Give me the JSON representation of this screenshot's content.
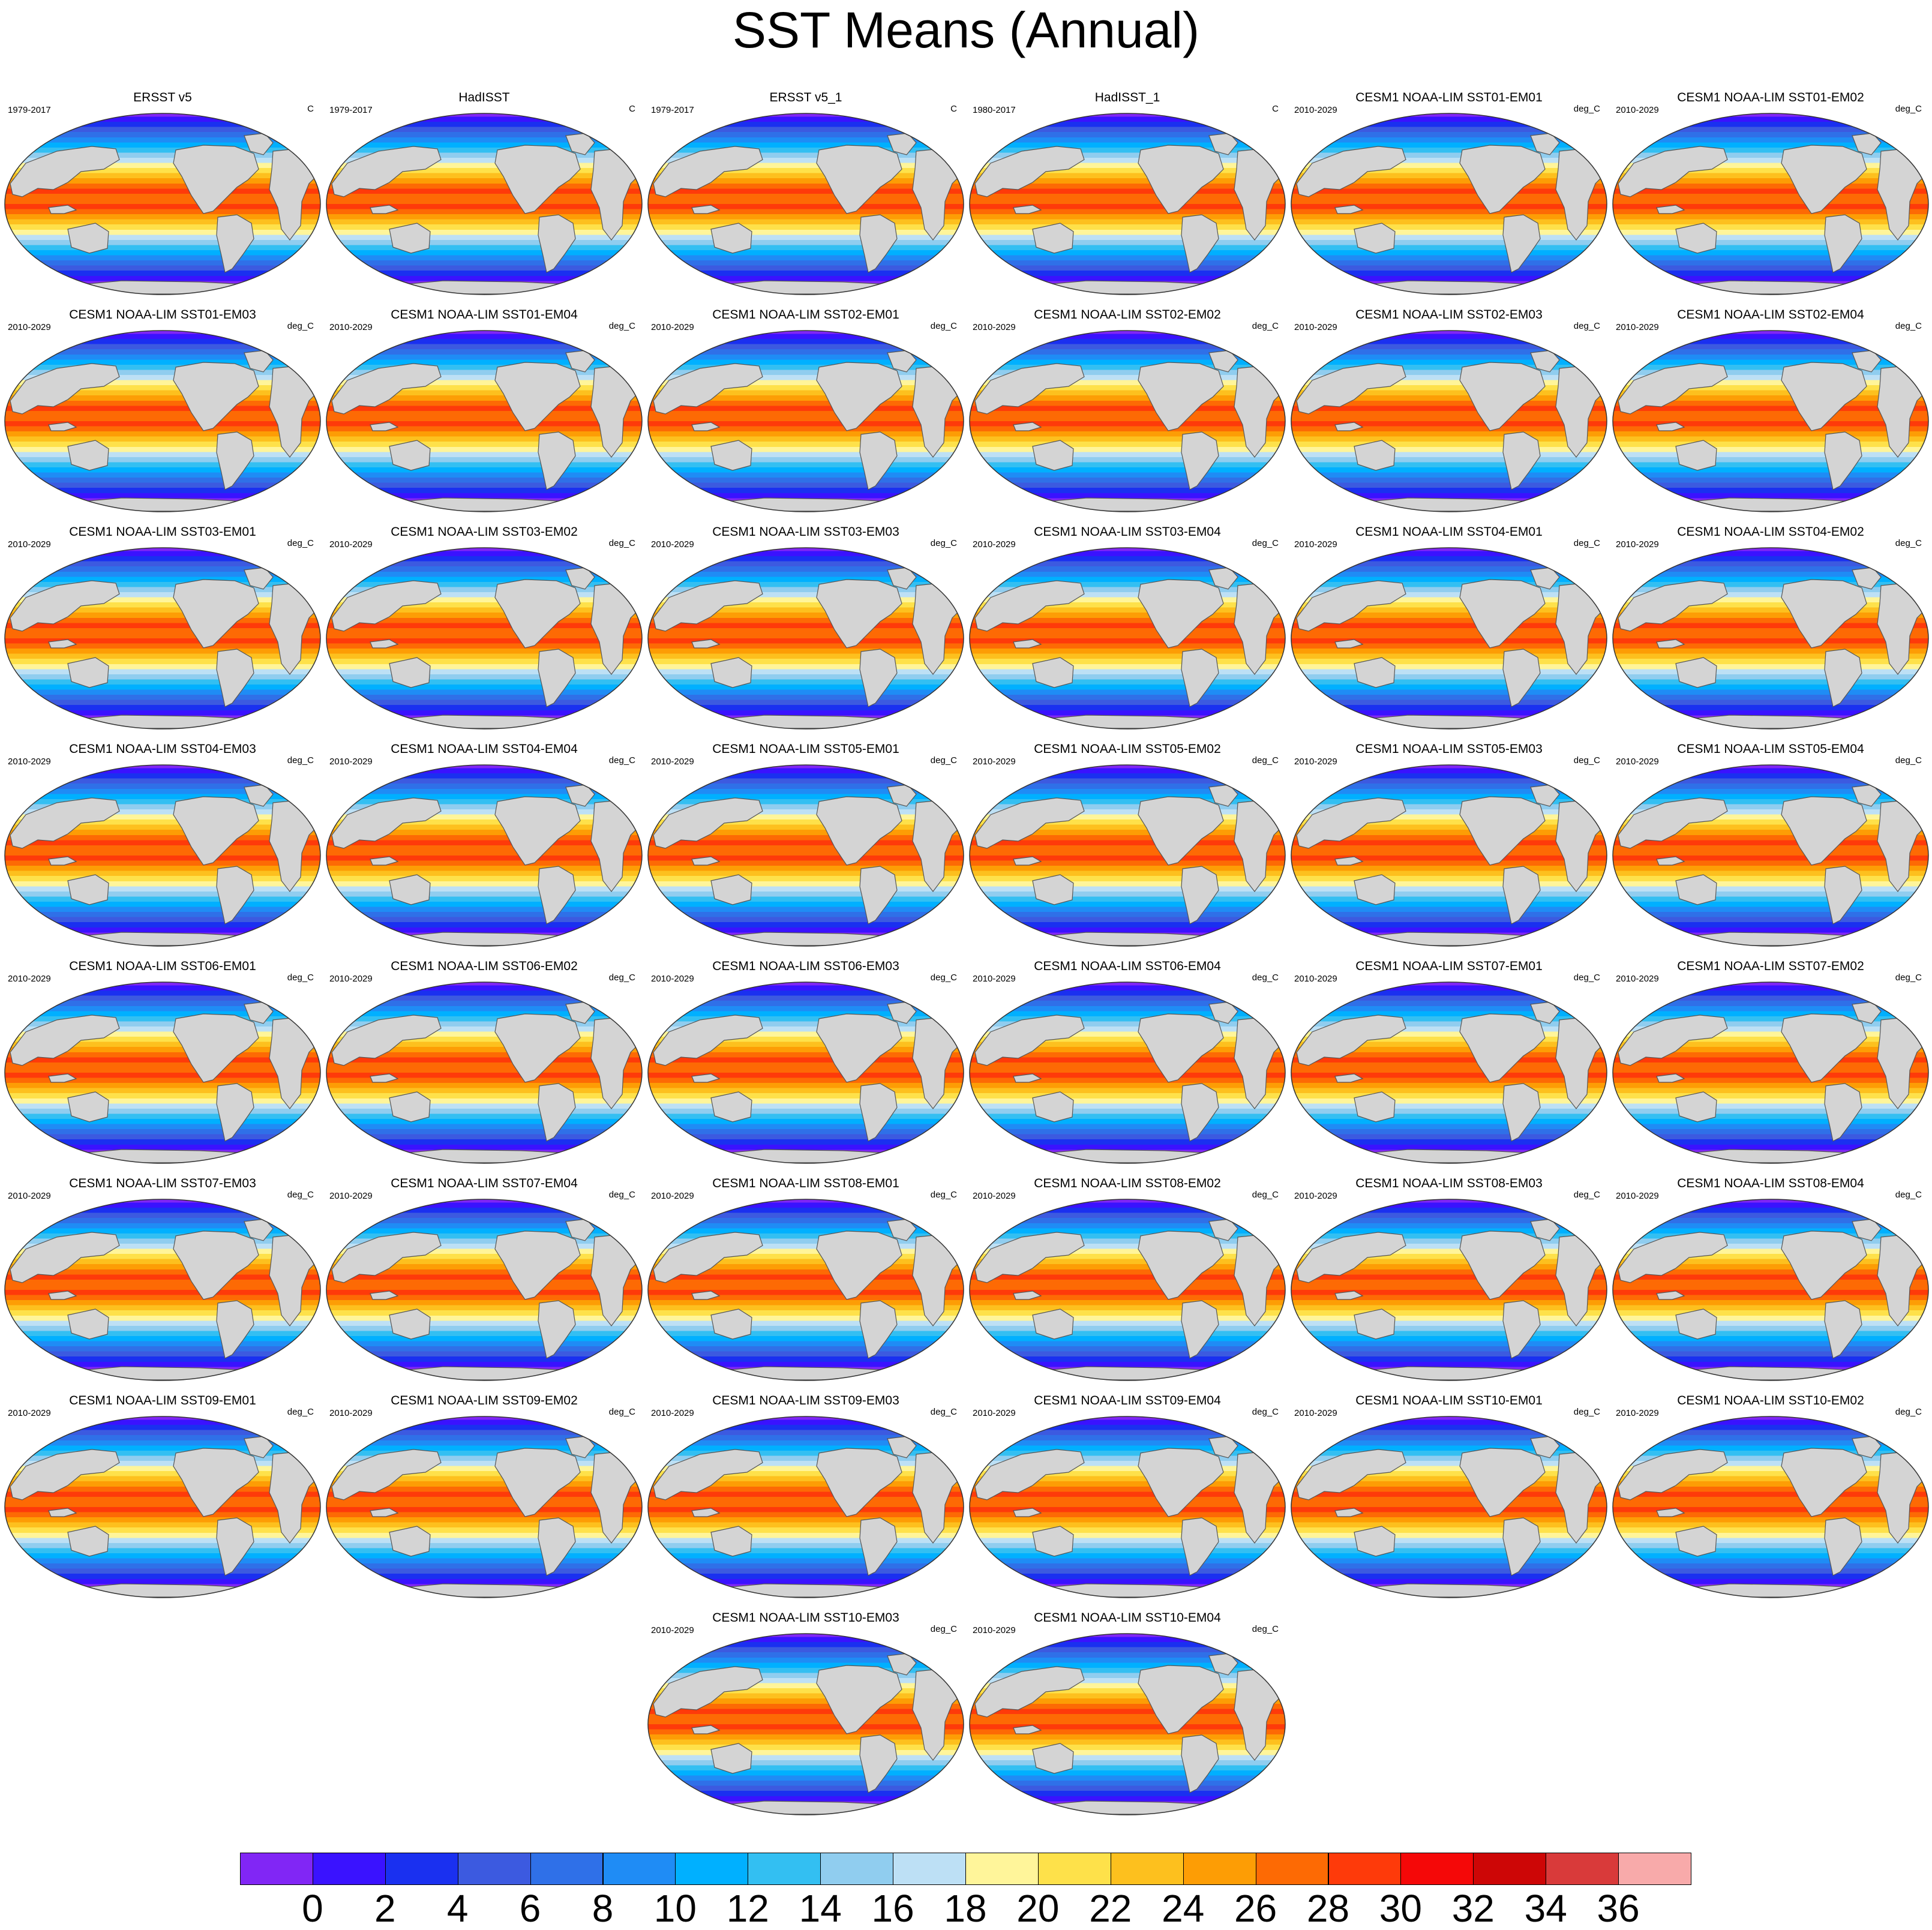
{
  "title": "SST Means (Annual)",
  "panels": [
    {
      "title": "ERSST v5",
      "left": "1979-2017",
      "right": "C"
    },
    {
      "title": "HadISST",
      "left": "1979-2017",
      "right": "C"
    },
    {
      "title": "ERSST v5_1",
      "left": "1979-2017",
      "right": "C"
    },
    {
      "title": "HadISST_1",
      "left": "1980-2017",
      "right": "C"
    },
    {
      "title": "CESM1 NOAA-LIM SST01-EM01",
      "left": "2010-2029",
      "right": "deg_C"
    },
    {
      "title": "CESM1 NOAA-LIM SST01-EM02",
      "left": "2010-2029",
      "right": "deg_C"
    },
    {
      "title": "CESM1 NOAA-LIM SST01-EM03",
      "left": "2010-2029",
      "right": "deg_C"
    },
    {
      "title": "CESM1 NOAA-LIM SST01-EM04",
      "left": "2010-2029",
      "right": "deg_C"
    },
    {
      "title": "CESM1 NOAA-LIM SST02-EM01",
      "left": "2010-2029",
      "right": "deg_C"
    },
    {
      "title": "CESM1 NOAA-LIM SST02-EM02",
      "left": "2010-2029",
      "right": "deg_C"
    },
    {
      "title": "CESM1 NOAA-LIM SST02-EM03",
      "left": "2010-2029",
      "right": "deg_C"
    },
    {
      "title": "CESM1 NOAA-LIM SST02-EM04",
      "left": "2010-2029",
      "right": "deg_C"
    },
    {
      "title": "CESM1 NOAA-LIM SST03-EM01",
      "left": "2010-2029",
      "right": "deg_C"
    },
    {
      "title": "CESM1 NOAA-LIM SST03-EM02",
      "left": "2010-2029",
      "right": "deg_C"
    },
    {
      "title": "CESM1 NOAA-LIM SST03-EM03",
      "left": "2010-2029",
      "right": "deg_C"
    },
    {
      "title": "CESM1 NOAA-LIM SST03-EM04",
      "left": "2010-2029",
      "right": "deg_C"
    },
    {
      "title": "CESM1 NOAA-LIM SST04-EM01",
      "left": "2010-2029",
      "right": "deg_C"
    },
    {
      "title": "CESM1 NOAA-LIM SST04-EM02",
      "left": "2010-2029",
      "right": "deg_C"
    },
    {
      "title": "CESM1 NOAA-LIM SST04-EM03",
      "left": "2010-2029",
      "right": "deg_C"
    },
    {
      "title": "CESM1 NOAA-LIM SST04-EM04",
      "left": "2010-2029",
      "right": "deg_C"
    },
    {
      "title": "CESM1 NOAA-LIM SST05-EM01",
      "left": "2010-2029",
      "right": "deg_C"
    },
    {
      "title": "CESM1 NOAA-LIM SST05-EM02",
      "left": "2010-2029",
      "right": "deg_C"
    },
    {
      "title": "CESM1 NOAA-LIM SST05-EM03",
      "left": "2010-2029",
      "right": "deg_C"
    },
    {
      "title": "CESM1 NOAA-LIM SST05-EM04",
      "left": "2010-2029",
      "right": "deg_C"
    },
    {
      "title": "CESM1 NOAA-LIM SST06-EM01",
      "left": "2010-2029",
      "right": "deg_C"
    },
    {
      "title": "CESM1 NOAA-LIM SST06-EM02",
      "left": "2010-2029",
      "right": "deg_C"
    },
    {
      "title": "CESM1 NOAA-LIM SST06-EM03",
      "left": "2010-2029",
      "right": "deg_C"
    },
    {
      "title": "CESM1 NOAA-LIM SST06-EM04",
      "left": "2010-2029",
      "right": "deg_C"
    },
    {
      "title": "CESM1 NOAA-LIM SST07-EM01",
      "left": "2010-2029",
      "right": "deg_C"
    },
    {
      "title": "CESM1 NOAA-LIM SST07-EM02",
      "left": "2010-2029",
      "right": "deg_C"
    },
    {
      "title": "CESM1 NOAA-LIM SST07-EM03",
      "left": "2010-2029",
      "right": "deg_C"
    },
    {
      "title": "CESM1 NOAA-LIM SST07-EM04",
      "left": "2010-2029",
      "right": "deg_C"
    },
    {
      "title": "CESM1 NOAA-LIM SST08-EM01",
      "left": "2010-2029",
      "right": "deg_C"
    },
    {
      "title": "CESM1 NOAA-LIM SST08-EM02",
      "left": "2010-2029",
      "right": "deg_C"
    },
    {
      "title": "CESM1 NOAA-LIM SST08-EM03",
      "left": "2010-2029",
      "right": "deg_C"
    },
    {
      "title": "CESM1 NOAA-LIM SST08-EM04",
      "left": "2010-2029",
      "right": "deg_C"
    },
    {
      "title": "CESM1 NOAA-LIM SST09-EM01",
      "left": "2010-2029",
      "right": "deg_C"
    },
    {
      "title": "CESM1 NOAA-LIM SST09-EM02",
      "left": "2010-2029",
      "right": "deg_C"
    },
    {
      "title": "CESM1 NOAA-LIM SST09-EM03",
      "left": "2010-2029",
      "right": "deg_C"
    },
    {
      "title": "CESM1 NOAA-LIM SST09-EM04",
      "left": "2010-2029",
      "right": "deg_C"
    },
    {
      "title": "CESM1 NOAA-LIM SST10-EM01",
      "left": "2010-2029",
      "right": "deg_C"
    },
    {
      "title": "CESM1 NOAA-LIM SST10-EM02",
      "left": "2010-2029",
      "right": "deg_C"
    },
    {
      "title": "CESM1 NOAA-LIM SST10-EM03",
      "left": "2010-2029",
      "right": "deg_C"
    },
    {
      "title": "CESM1 NOAA-LIM SST10-EM04",
      "left": "2010-2029",
      "right": "deg_C"
    }
  ],
  "colorbar": {
    "labels": [
      "0",
      "2",
      "4",
      "6",
      "8",
      "10",
      "12",
      "14",
      "16",
      "18",
      "20",
      "22",
      "24",
      "26",
      "28",
      "30",
      "32",
      "34",
      "36"
    ],
    "colors": [
      "#8126f5",
      "#3a12ff",
      "#1a30f0",
      "#3c5ae0",
      "#2f70e8",
      "#1f8cf5",
      "#00b0ff",
      "#33bff2",
      "#90cdef",
      "#bde0f5",
      "#fff59a",
      "#fee14a",
      "#fdc01e",
      "#fd9d05",
      "#fd6a04",
      "#fe3a0a",
      "#f50808",
      "#cd0606",
      "#d93a3a",
      "#f8aaaa"
    ]
  },
  "map_colors": {
    "land": "#d4d4d4",
    "coast": "#555555",
    "background": "#ffffff"
  }
}
